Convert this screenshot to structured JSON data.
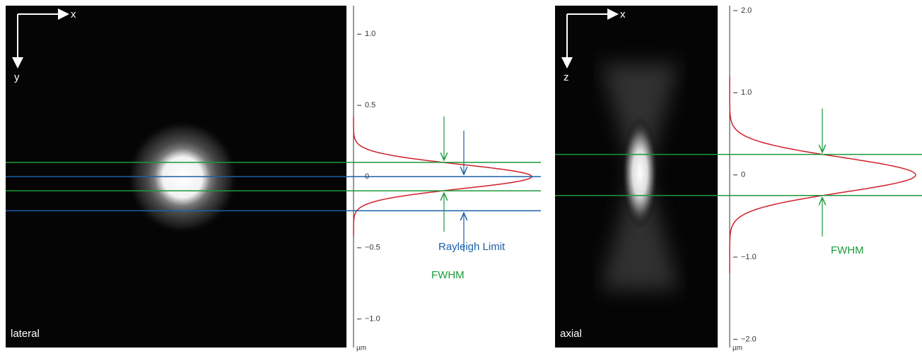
{
  "panels": [
    {
      "label": "lateral",
      "axis_h": "x",
      "axis_v": "y",
      "unit": "µm",
      "ylim": [
        -1.2,
        1.2
      ],
      "yticks": [
        {
          "value": 1.0,
          "label": "1.0"
        },
        0.5,
        0,
        {
          "value": -0.5,
          "label": "−0.5"
        },
        {
          "value": -1.0,
          "label": "−1.0"
        }
      ],
      "fwhm": {
        "label": "FWHM",
        "color": "#1a9a3a",
        "values": [
          0.1,
          -0.1
        ]
      },
      "rayleigh": {
        "label": "Rayleigh Limit",
        "color": "#1a5fa8",
        "values": [
          0,
          -0.24
        ]
      },
      "curve_color": "#d0202a"
    },
    {
      "label": "axial",
      "axis_h": "x",
      "axis_v": "z",
      "unit": "µm",
      "ylim": [
        -2.1,
        2.06
      ],
      "yticks": [
        {
          "value": 2.0,
          "label": "2.0"
        },
        {
          "value": 1.0,
          "label": "1.0"
        },
        0,
        {
          "value": -1.0,
          "label": "−1.0"
        },
        {
          "value": -2.0,
          "label": "−2.0"
        }
      ],
      "fwhm": {
        "label": "FWHM",
        "color": "#1a9a3a",
        "values": [
          0.25,
          -0.25
        ]
      },
      "curve_color": "#d0202a"
    }
  ]
}
